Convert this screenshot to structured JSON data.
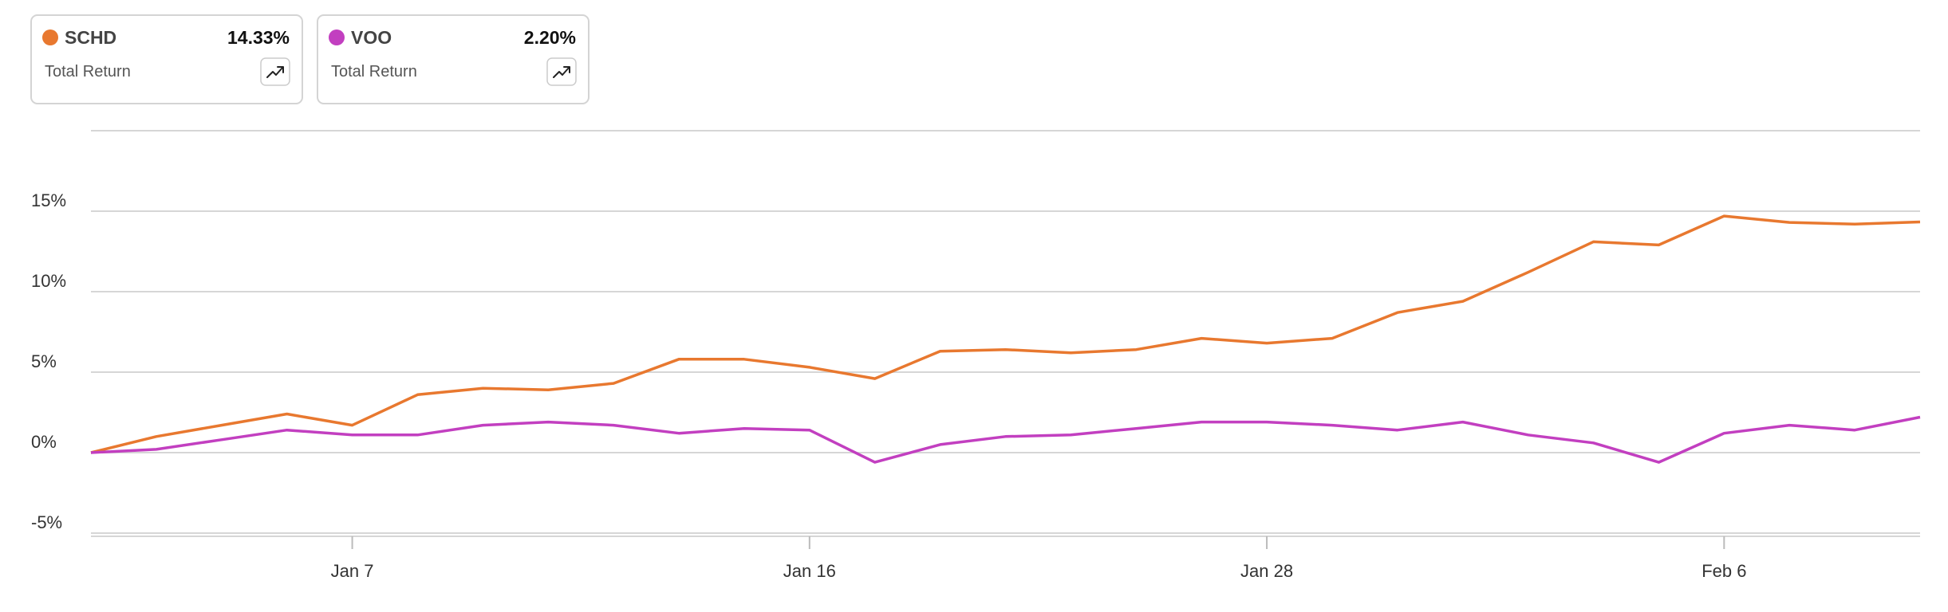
{
  "chart_data": {
    "type": "line",
    "legend_metric": "Total Return",
    "categories": [
      null,
      null,
      null,
      null,
      "Jan 7",
      null,
      null,
      null,
      null,
      null,
      null,
      "Jan 16",
      null,
      null,
      null,
      null,
      null,
      null,
      "Jan 28",
      null,
      null,
      null,
      null,
      null,
      null,
      "Feb 6",
      null,
      null,
      null
    ],
    "series": [
      {
        "name": "SCHD",
        "color": "#e8782f",
        "total_return": 14.33,
        "total_return_label": "14.33%",
        "values": [
          0,
          1.0,
          1.7,
          2.4,
          1.7,
          3.6,
          4.0,
          3.9,
          4.3,
          5.8,
          5.8,
          5.3,
          4.6,
          6.3,
          6.4,
          6.2,
          6.4,
          7.1,
          6.8,
          7.1,
          8.7,
          9.4,
          11.2,
          13.1,
          12.9,
          14.7,
          14.3,
          14.2,
          14.33
        ]
      },
      {
        "name": "VOO",
        "color": "#c23fc0",
        "total_return": 2.2,
        "total_return_label": "2.20%",
        "values": [
          0,
          0.2,
          0.8,
          1.4,
          1.1,
          1.1,
          1.7,
          1.9,
          1.7,
          1.2,
          1.5,
          1.4,
          -0.6,
          0.5,
          1.0,
          1.1,
          1.5,
          1.9,
          1.9,
          1.7,
          1.4,
          1.9,
          1.1,
          0.6,
          -0.6,
          1.2,
          1.7,
          1.4,
          2.2
        ]
      }
    ],
    "ylim": [
      -5.2,
      20
    ],
    "yticks": [
      {
        "value": -5,
        "label": "-5%"
      },
      {
        "value": 0,
        "label": "0%"
      },
      {
        "value": 5,
        "label": "5%"
      },
      {
        "value": 10,
        "label": "10%"
      },
      {
        "value": 15,
        "label": "15%"
      }
    ],
    "grid": true
  }
}
